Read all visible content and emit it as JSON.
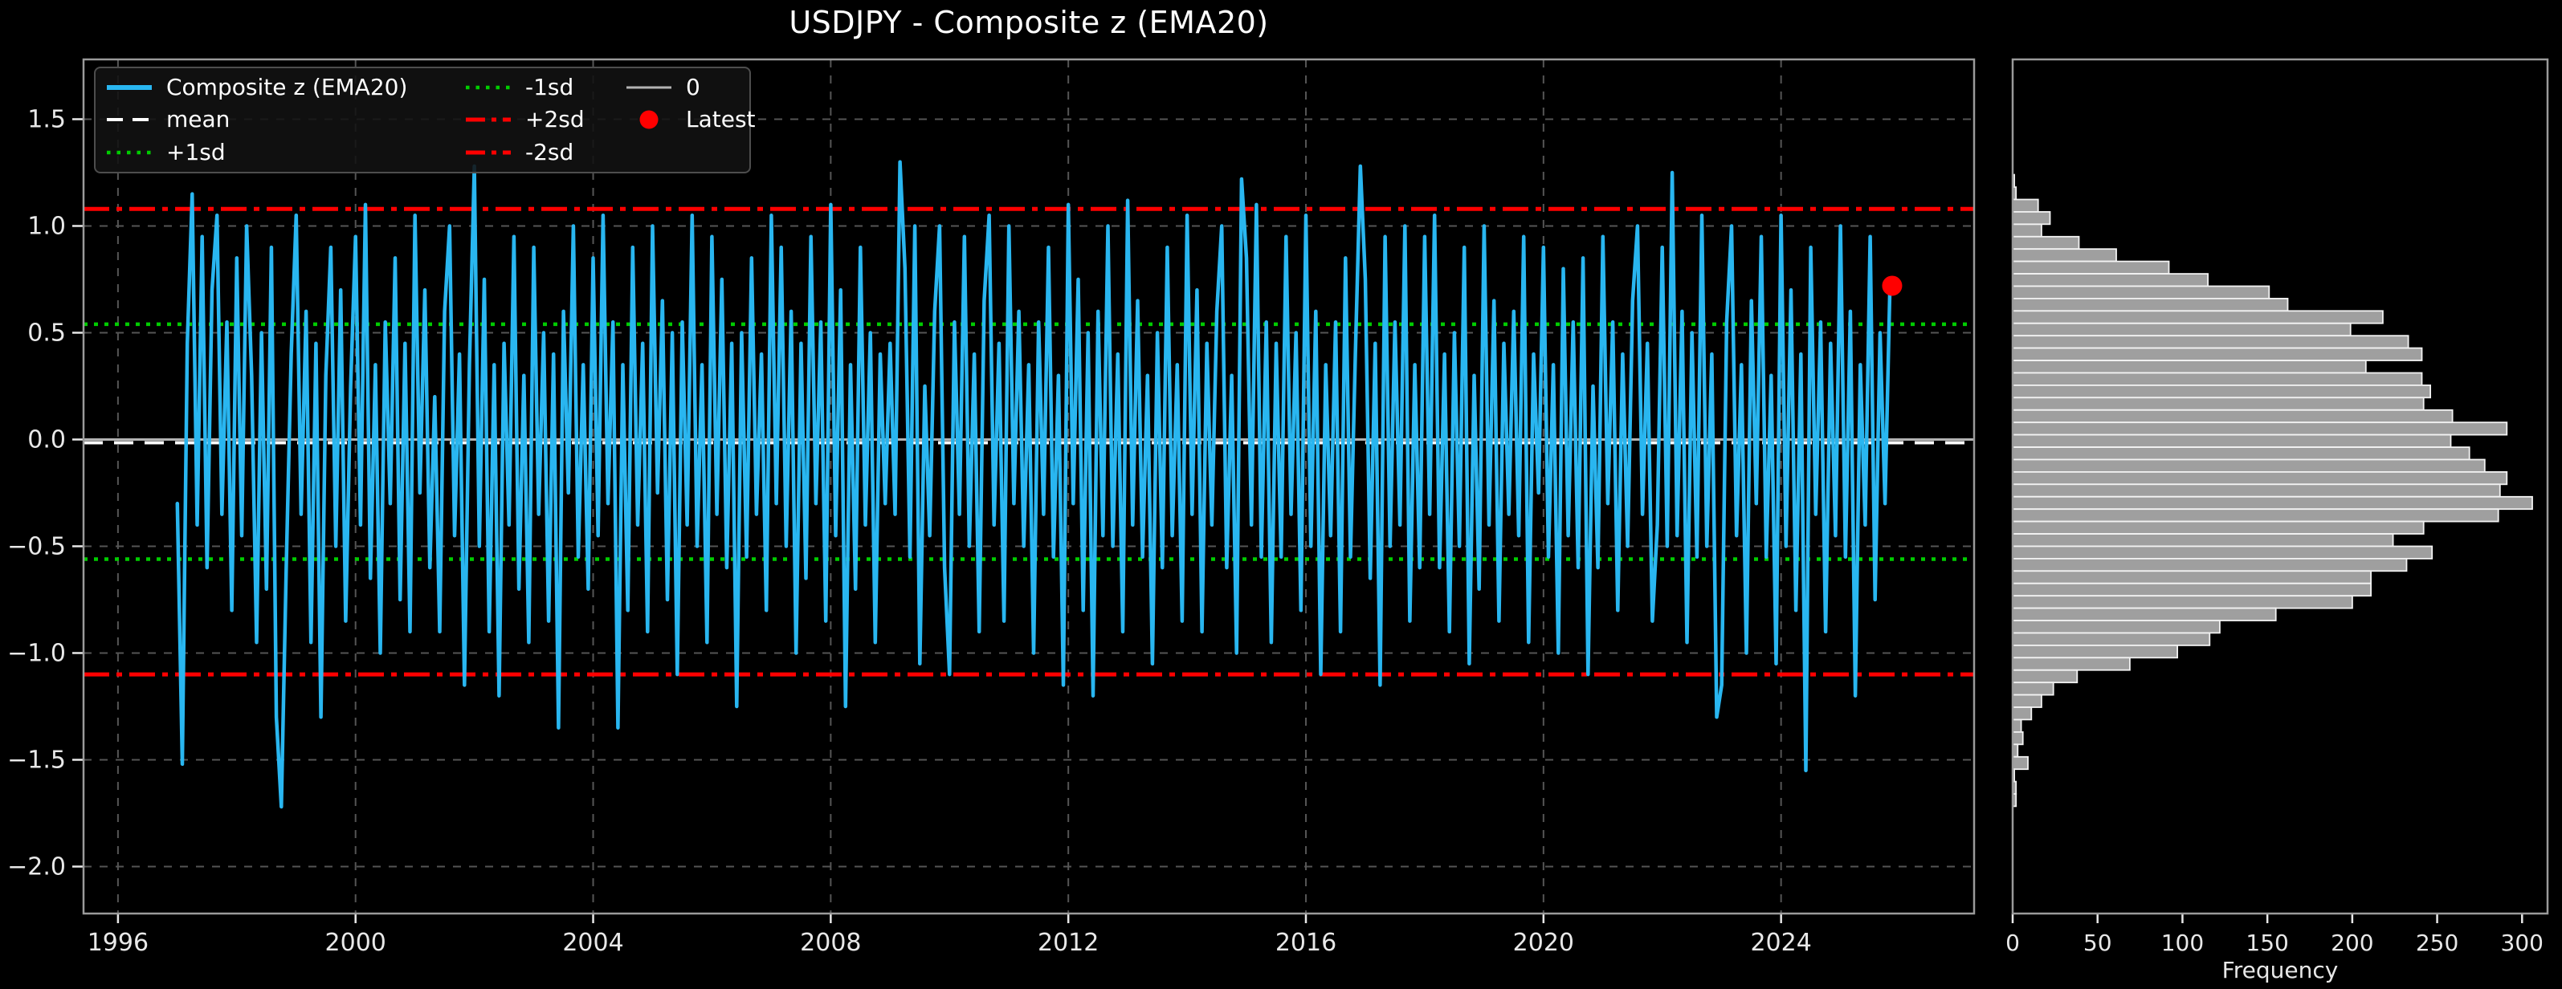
{
  "title": "USDJPY - Composite z (EMA20)",
  "colors": {
    "background": "#000000",
    "series": "#29b6f0",
    "mean": "#ffffff",
    "sd1": "#00cc00",
    "sd2": "#ff0000",
    "zero_line": "#b3b3b3",
    "grid": "#555555",
    "spine": "#9a9a9a",
    "tick_text": "#e8e8e8",
    "bar_fill": "#9f9f9f",
    "bar_edge": "#f2f2f2",
    "latest_marker": "#ff0000"
  },
  "legend": {
    "items": [
      {
        "label": "Composite z (EMA20)",
        "style": "solid",
        "color": "#29b6f0",
        "lw": 6
      },
      {
        "label": "mean",
        "style": "dashed",
        "color": "#ffffff",
        "lw": 4
      },
      {
        "label": "+1sd",
        "style": "dotted",
        "color": "#00cc00",
        "lw": 4.5
      },
      {
        "label": "-1sd",
        "style": "dotted",
        "color": "#00cc00",
        "lw": 4.5
      },
      {
        "label": "+2sd",
        "style": "dashdot",
        "color": "#ff0000",
        "lw": 5
      },
      {
        "label": "-2sd",
        "style": "dashdot",
        "color": "#ff0000",
        "lw": 5
      },
      {
        "label": "0",
        "style": "solid",
        "color": "#b3b3b3",
        "lw": 3
      },
      {
        "label": "Latest",
        "style": "marker",
        "color": "#ff0000",
        "lw": 0
      }
    ]
  },
  "chart_data": [
    {
      "type": "line",
      "title": "USDJPY - Composite z (EMA20)",
      "xlabel": "",
      "ylabel": "",
      "xlim": [
        1995.42,
        2027.25
      ],
      "ylim": [
        -2.22,
        1.78
      ],
      "grid": true,
      "x_ticks": [
        1996,
        2000,
        2004,
        2008,
        2012,
        2016,
        2020,
        2024
      ],
      "x_tick_labels": [
        "1996",
        "2000",
        "2004",
        "2008",
        "2012",
        "2016",
        "2020",
        "2024"
      ],
      "y_ticks": [
        1.5,
        1.0,
        0.5,
        0.0,
        -0.5,
        -1.0,
        -1.5,
        -2.0
      ],
      "y_tick_labels": [
        "1.5",
        "1.0",
        "0.5",
        "0.0",
        "−0.5",
        "−1.0",
        "−1.5",
        "−2.0"
      ],
      "ref_lines": {
        "plus2sd": 1.08,
        "plus1sd": 0.54,
        "zero": 0.0,
        "mean": -0.015,
        "minus1sd": -0.56,
        "minus2sd": -1.1
      },
      "latest": {
        "x": 2025.87,
        "y": 0.72
      },
      "series": {
        "name": "Composite z (EMA20)",
        "x_start": 1997.0,
        "x_step": 0.0833333,
        "values": [
          -0.3,
          -1.52,
          0.45,
          1.15,
          -0.4,
          0.95,
          -0.6,
          0.7,
          1.05,
          -0.35,
          0.55,
          -0.8,
          0.85,
          -0.45,
          1.0,
          0.3,
          -0.95,
          0.5,
          -0.7,
          0.9,
          -1.3,
          -1.72,
          -0.6,
          0.4,
          1.05,
          -0.35,
          0.6,
          -0.95,
          0.45,
          -1.3,
          0.3,
          0.9,
          -0.5,
          0.7,
          -0.85,
          0.25,
          0.95,
          -0.4,
          1.1,
          -0.65,
          0.35,
          -1.0,
          0.55,
          -0.3,
          0.85,
          -0.75,
          0.45,
          -0.9,
          1.05,
          -0.25,
          0.7,
          -0.6,
          0.2,
          -0.9,
          0.6,
          1.0,
          -0.45,
          0.4,
          -1.15,
          0.35,
          1.28,
          -0.5,
          0.75,
          -0.9,
          0.35,
          -1.2,
          0.45,
          -0.4,
          0.95,
          -0.7,
          0.3,
          -0.95,
          0.9,
          -0.35,
          0.5,
          -0.85,
          0.4,
          -1.35,
          0.6,
          -0.25,
          1.0,
          -0.55,
          0.35,
          -0.7,
          0.85,
          -0.45,
          1.05,
          -0.3,
          0.55,
          -1.35,
          0.35,
          -0.8,
          0.9,
          -0.4,
          0.45,
          -0.9,
          1.0,
          -0.25,
          0.65,
          -0.75,
          0.5,
          -1.1,
          0.55,
          -0.4,
          1.05,
          -0.5,
          0.35,
          -0.95,
          0.95,
          -0.35,
          0.75,
          -0.6,
          0.45,
          -1.25,
          0.5,
          -0.55,
          0.85,
          -0.35,
          0.4,
          -0.8,
          1.05,
          -0.3,
          0.9,
          -0.5,
          0.6,
          -1.0,
          0.45,
          -0.65,
          0.95,
          -0.3,
          0.55,
          -0.85,
          1.1,
          -0.45,
          0.7,
          -1.25,
          0.35,
          -0.7,
          0.9,
          -0.4,
          0.5,
          -0.95,
          0.4,
          -0.3,
          0.45,
          -0.35,
          1.3,
          0.8,
          -0.55,
          1.0,
          -1.05,
          0.25,
          -0.45,
          0.6,
          1.0,
          -0.6,
          -1.1,
          0.55,
          -0.35,
          0.95,
          -0.5,
          0.4,
          -0.9,
          0.65,
          1.05,
          -0.4,
          0.45,
          -0.85,
          1.0,
          -0.3,
          0.6,
          -0.5,
          0.35,
          -1.0,
          0.55,
          -0.35,
          0.9,
          -0.55,
          0.3,
          -1.15,
          1.1,
          -0.3,
          0.75,
          -0.8,
          0.5,
          -1.2,
          0.6,
          -0.45,
          1.0,
          -0.5,
          0.4,
          -0.9,
          1.12,
          -0.4,
          0.65,
          -0.55,
          0.3,
          -1.05,
          0.5,
          -0.6,
          0.9,
          -0.45,
          0.35,
          -0.85,
          1.05,
          -0.35,
          0.7,
          -0.9,
          0.45,
          -0.4,
          0.6,
          1.0,
          -0.6,
          0.3,
          -1.0,
          1.22,
          0.85,
          -0.4,
          1.1,
          -0.55,
          0.55,
          -0.95,
          0.45,
          -0.55,
          0.95,
          -0.35,
          0.5,
          -0.8,
          1.05,
          -0.5,
          0.6,
          -1.1,
          0.35,
          -0.45,
          0.55,
          -0.9,
          0.85,
          -0.55,
          0.4,
          1.28,
          0.75,
          -0.65,
          0.45,
          -1.15,
          0.95,
          -0.5,
          0.55,
          -0.4,
          1.0,
          -0.85,
          0.35,
          -0.6,
          0.95,
          -0.35,
          1.05,
          -0.6,
          0.4,
          -0.9,
          0.5,
          -0.5,
          0.9,
          -1.05,
          0.3,
          -0.7,
          1.0,
          -0.4,
          0.65,
          -0.85,
          0.45,
          -0.35,
          0.6,
          -0.45,
          0.95,
          -0.95,
          0.4,
          -0.25,
          0.9,
          -0.55,
          0.35,
          -1.0,
          0.8,
          -0.45,
          0.55,
          -0.6,
          0.85,
          -1.1,
          0.25,
          -0.6,
          0.95,
          -0.3,
          0.55,
          -0.8,
          0.4,
          -0.5,
          0.65,
          1.0,
          -0.35,
          0.45,
          -0.85,
          -0.4,
          0.9,
          -0.5,
          1.25,
          -0.45,
          0.6,
          -0.95,
          0.5,
          -0.55,
          1.05,
          -0.5,
          0.4,
          -1.3,
          -1.15,
          0.55,
          1.0,
          -0.45,
          0.35,
          -1.0,
          0.65,
          -0.3,
          0.95,
          -0.55,
          0.3,
          -1.05,
          1.05,
          -0.5,
          0.7,
          -0.8,
          0.4,
          -1.55,
          0.9,
          -0.35,
          0.55,
          -0.9,
          0.45,
          -0.45,
          1.0,
          -0.55,
          0.6,
          -1.2,
          0.35,
          -0.4,
          0.95,
          -0.75,
          0.5,
          -0.3,
          0.72
        ]
      }
    },
    {
      "type": "bar",
      "orientation": "horizontal",
      "xlabel": "Frequency",
      "xlim": [
        0,
        315
      ],
      "ylim": [
        -2.22,
        1.78
      ],
      "grid": false,
      "x_ticks": [
        0,
        50,
        100,
        150,
        200,
        250,
        300
      ],
      "x_tick_labels": [
        "0",
        "50",
        "100",
        "150",
        "200",
        "250",
        "300"
      ],
      "bin_max_z": 1.24,
      "bin_size_z": 0.058,
      "frequencies_top_to_bottom": [
        1,
        2,
        15,
        22,
        17,
        39,
        61,
        92,
        115,
        151,
        162,
        218,
        199,
        233,
        241,
        208,
        241,
        246,
        242,
        259,
        291,
        258,
        269,
        278,
        291,
        287,
        306,
        286,
        242,
        224,
        247,
        232,
        211,
        211,
        200,
        155,
        122,
        116,
        97,
        69,
        38,
        24,
        17,
        11,
        5,
        6,
        3,
        9,
        1,
        2,
        2
      ]
    }
  ]
}
